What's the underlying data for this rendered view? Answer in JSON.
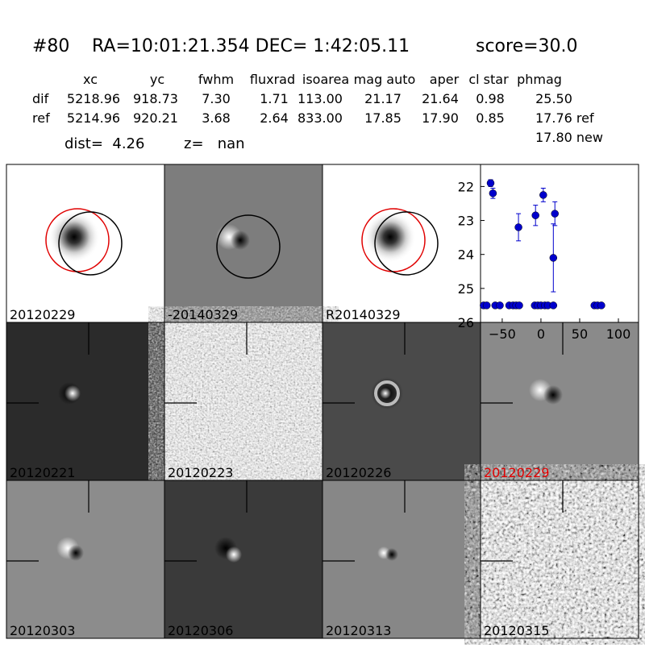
{
  "header": {
    "id": "#80",
    "coords": "RA=10:01:21.354 DEC= 1:42:05.11",
    "score": "score=30.0"
  },
  "table": {
    "columns": [
      "xc",
      "yc",
      "fwhm",
      "fluxrad",
      "isoarea",
      "mag auto",
      "aper",
      "cl star",
      "phmag"
    ],
    "rows": [
      {
        "label": "dif",
        "cells": [
          "5218.96",
          "918.73",
          "7.30",
          "1.71",
          "113.00",
          "21.17",
          "21.64",
          "0.98",
          "25.50"
        ]
      },
      {
        "label": "ref",
        "cells": [
          "5214.96",
          "920.21",
          "3.68",
          "2.64",
          "833.00",
          "17.85",
          "17.90",
          "0.85",
          "17.76 ref"
        ]
      }
    ],
    "extra": "17.80 new",
    "dist": "dist=  4.26",
    "z": "z=   nan"
  },
  "panels": [
    "20120229",
    "-20140329",
    "R20140329",
    "20120221",
    "20120223",
    "20120226",
    "20120229",
    "20120303",
    "20120306",
    "20120313",
    "20120315"
  ],
  "chart_data": {
    "type": "scatter",
    "color": "#0000cc",
    "x": [
      -65,
      -62,
      -29,
      -7,
      3,
      16,
      18,
      -74,
      -70,
      -59,
      -53,
      -41,
      -36,
      -32,
      -28,
      -8,
      -4,
      0,
      5,
      9,
      16,
      69,
      73,
      78
    ],
    "values": [
      21.9,
      22.2,
      23.2,
      22.85,
      22.25,
      24.1,
      22.8,
      25.5,
      25.5,
      25.5,
      25.5,
      25.5,
      25.5,
      25.5,
      25.5,
      25.5,
      25.5,
      25.5,
      25.5,
      25.5,
      25.5,
      25.5,
      25.5,
      25.5
    ],
    "errors": [
      0.1,
      0.15,
      0.4,
      0.3,
      0.2,
      1.0,
      0.35,
      null,
      null,
      null,
      null,
      null,
      null,
      null,
      null,
      null,
      null,
      null,
      null,
      null,
      null,
      null,
      null,
      null
    ],
    "xlim": [
      -78,
      126
    ],
    "ylim": [
      26,
      21.35
    ],
    "xticks": [
      {
        "value": -50,
        "label": "−50"
      },
      0,
      50,
      100
    ],
    "yticks": [
      22,
      23,
      24,
      25,
      26
    ]
  }
}
